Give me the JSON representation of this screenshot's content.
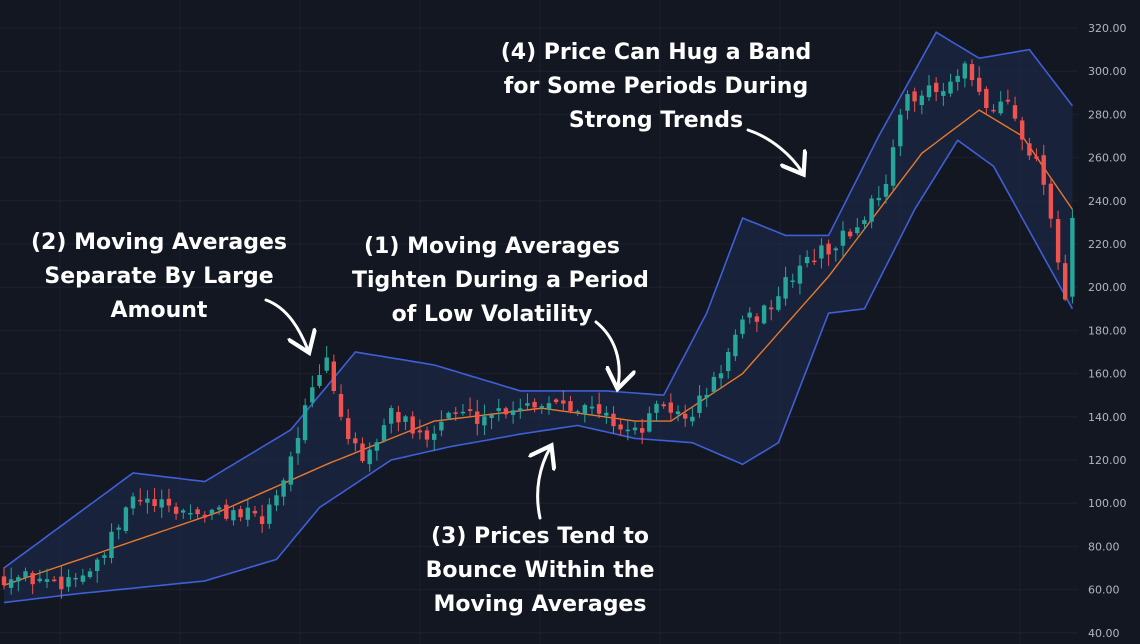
{
  "colors": {
    "background": "#131722",
    "grid": "#1e2230",
    "up": "#26a69a",
    "down": "#ef5350",
    "band_line": "#3f5fd6",
    "band_fill": "#1b2744",
    "middle_line": "#e8792b",
    "annotation_text": "#ffffff",
    "axis_text": "#b2b5be"
  },
  "annotations": [
    {
      "id": "1",
      "lines": [
        "(1) Moving Averages",
        "Tighten During a Period",
        "of Low Volatility"
      ],
      "arrow": "curved-arrow-down-left"
    },
    {
      "id": "2",
      "lines": [
        "(2) Moving Averages",
        "Separate By Large",
        "Amount"
      ],
      "arrow": "curved-arrow-down-right"
    },
    {
      "id": "3",
      "lines": [
        "(3) Prices Tend to",
        "Bounce Within the",
        "Moving Averages"
      ],
      "arrow": "curved-arrow-up"
    },
    {
      "id": "4",
      "lines": [
        "(4) Price Can Hug a Band",
        "for Some Periods During",
        "Strong Trends"
      ],
      "arrow": "curved-arrow-down-right"
    }
  ],
  "chart_data": {
    "type": "candlestick",
    "indicator": "bollinger-bands",
    "title": "",
    "xlabel": "",
    "ylabel": "",
    "y_ticks": [
      "320.00",
      "300.00",
      "280.00",
      "260.00",
      "240.00",
      "220.00",
      "200.00",
      "180.00",
      "160.00",
      "140.00",
      "120.00",
      "100.00",
      "80.00",
      "60.00",
      "40.00"
    ],
    "ylim": [
      40,
      325
    ],
    "y_axis_side": "right",
    "grid": true,
    "candle_count": 150,
    "close_anchors": [
      [
        0,
        66
      ],
      [
        8,
        64
      ],
      [
        13,
        70
      ],
      [
        18,
        102
      ],
      [
        23,
        97
      ],
      [
        28,
        95
      ],
      [
        32,
        96
      ],
      [
        36,
        92
      ],
      [
        39,
        112
      ],
      [
        42,
        143
      ],
      [
        45,
        166
      ],
      [
        47,
        140
      ],
      [
        50,
        116
      ],
      [
        54,
        143
      ],
      [
        58,
        130
      ],
      [
        62,
        142
      ],
      [
        66,
        140
      ],
      [
        72,
        146
      ],
      [
        78,
        148
      ],
      [
        84,
        140
      ],
      [
        88,
        132
      ],
      [
        92,
        146
      ],
      [
        95,
        138
      ],
      [
        99,
        156
      ],
      [
        103,
        182
      ],
      [
        107,
        192
      ],
      [
        111,
        210
      ],
      [
        115,
        218
      ],
      [
        119,
        228
      ],
      [
        123,
        250
      ],
      [
        126,
        290
      ],
      [
        131,
        290
      ],
      [
        134,
        300
      ],
      [
        137,
        282
      ],
      [
        140,
        286
      ],
      [
        145,
        250
      ],
      [
        148,
        196
      ],
      [
        149,
        232
      ]
    ],
    "bollinger": {
      "middle": [
        [
          0,
          62
        ],
        [
          30,
          96
        ],
        [
          45,
          118
        ],
        [
          60,
          138
        ],
        [
          75,
          144
        ],
        [
          88,
          138
        ],
        [
          93,
          138
        ],
        [
          103,
          160
        ],
        [
          115,
          205
        ],
        [
          128,
          262
        ],
        [
          136,
          282
        ],
        [
          142,
          270
        ],
        [
          149,
          236
        ]
      ],
      "upper": [
        [
          0,
          70
        ],
        [
          18,
          114
        ],
        [
          28,
          110
        ],
        [
          40,
          134
        ],
        [
          49,
          170
        ],
        [
          60,
          164
        ],
        [
          72,
          152
        ],
        [
          84,
          152
        ],
        [
          92,
          150
        ],
        [
          98,
          188
        ],
        [
          103,
          232
        ],
        [
          109,
          224
        ],
        [
          115,
          224
        ],
        [
          122,
          270
        ],
        [
          130,
          318
        ],
        [
          136,
          306
        ],
        [
          143,
          310
        ],
        [
          149,
          284
        ]
      ],
      "lower": [
        [
          0,
          54
        ],
        [
          10,
          58
        ],
        [
          28,
          64
        ],
        [
          38,
          74
        ],
        [
          44,
          98
        ],
        [
          54,
          120
        ],
        [
          62,
          126
        ],
        [
          72,
          132
        ],
        [
          80,
          136
        ],
        [
          88,
          130
        ],
        [
          96,
          128
        ],
        [
          103,
          118
        ],
        [
          108,
          128
        ],
        [
          115,
          188
        ],
        [
          120,
          190
        ],
        [
          127,
          236
        ],
        [
          133,
          268
        ],
        [
          138,
          256
        ],
        [
          144,
          220
        ],
        [
          149,
          190
        ]
      ]
    }
  }
}
